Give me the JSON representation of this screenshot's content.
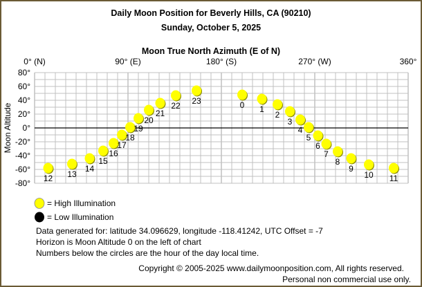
{
  "chart_data": {
    "type": "scatter",
    "title": "Daily Moon Position for Beverly Hills, CA (90210)",
    "subtitle": "Sunday, October 5, 2025",
    "xlabel": "Moon True North Azimuth (E of N)",
    "ylabel": "Moon Altitude",
    "xlim": [
      0,
      360
    ],
    "ylim": [
      -80,
      80
    ],
    "grid": true,
    "x_ticks": [
      {
        "v": 0,
        "label": "0° (N)"
      },
      {
        "v": 90,
        "label": "90° (E)"
      },
      {
        "v": 180,
        "label": "180° (S)"
      },
      {
        "v": 270,
        "label": "270° (W)"
      },
      {
        "v": 360,
        "label": "360°"
      }
    ],
    "y_ticks": [
      {
        "v": 80,
        "label": "80°"
      },
      {
        "v": 60,
        "label": "60°"
      },
      {
        "v": 40,
        "label": "40°"
      },
      {
        "v": 20,
        "label": "20°"
      },
      {
        "v": 0,
        "label": "0°"
      },
      {
        "v": -20,
        "label": "-20°"
      },
      {
        "v": -40,
        "label": "-40°"
      },
      {
        "v": -60,
        "label": "-60°"
      },
      {
        "v": -80,
        "label": "-80°"
      }
    ],
    "points": [
      {
        "hour": "0",
        "az": 200,
        "alt": 48,
        "illum": "high"
      },
      {
        "hour": "1",
        "az": 219,
        "alt": 42,
        "illum": "high"
      },
      {
        "hour": "2",
        "az": 234,
        "alt": 34,
        "illum": "high"
      },
      {
        "hour": "3",
        "az": 246,
        "alt": 24,
        "illum": "high"
      },
      {
        "hour": "4",
        "az": 256,
        "alt": 12,
        "illum": "high"
      },
      {
        "hour": "5",
        "az": 264,
        "alt": 1,
        "illum": "high"
      },
      {
        "hour": "6",
        "az": 273,
        "alt": -11,
        "illum": "high"
      },
      {
        "hour": "7",
        "az": 281,
        "alt": -23,
        "illum": "high"
      },
      {
        "hour": "8",
        "az": 292,
        "alt": -34,
        "illum": "high"
      },
      {
        "hour": "9",
        "az": 305,
        "alt": -44,
        "illum": "high"
      },
      {
        "hour": "10",
        "az": 322,
        "alt": -53,
        "illum": "high"
      },
      {
        "hour": "11",
        "az": 346,
        "alt": -58,
        "illum": "high"
      },
      {
        "hour": "12",
        "az": 13,
        "alt": -58,
        "illum": "high"
      },
      {
        "hour": "13",
        "az": 36,
        "alt": -52,
        "illum": "high"
      },
      {
        "hour": "14",
        "az": 53,
        "alt": -44,
        "illum": "high"
      },
      {
        "hour": "15",
        "az": 66,
        "alt": -33,
        "illum": "high"
      },
      {
        "hour": "16",
        "az": 76,
        "alt": -22,
        "illum": "high"
      },
      {
        "hour": "17",
        "az": 84,
        "alt": -10,
        "illum": "high"
      },
      {
        "hour": "18",
        "az": 92,
        "alt": 1,
        "illum": "high"
      },
      {
        "hour": "19",
        "az": 100,
        "alt": 14,
        "illum": "high"
      },
      {
        "hour": "20",
        "az": 110,
        "alt": 26,
        "illum": "high"
      },
      {
        "hour": "21",
        "az": 121,
        "alt": 36,
        "illum": "high"
      },
      {
        "hour": "22",
        "az": 136,
        "alt": 47,
        "illum": "high"
      },
      {
        "hour": "23",
        "az": 156,
        "alt": 54,
        "illum": "high"
      }
    ],
    "colors": {
      "high": "#ffff00",
      "low": "#000000",
      "grid": "#c0c0c0",
      "horizon": "#000000"
    }
  },
  "legend": {
    "high": "= High Illumination",
    "low": "= Low Illumination"
  },
  "notes": [
    "Data generated for: latitude 34.096629, longitude -118.41242, UTC Offset = -7",
    "Horizon is Moon Altitude 0 on the left of chart",
    "Numbers below the circles are the hour of the day local time."
  ],
  "copyright": "Copyright © 2005-2025 www.dailymoonposition.com, All rights reserved.",
  "usage": "Personal non commercial use only."
}
